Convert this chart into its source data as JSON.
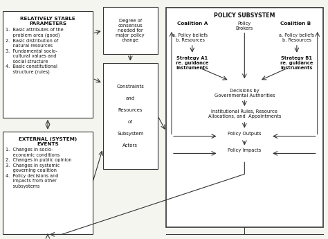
{
  "bg_color": "#f5f5f0",
  "box_color": "#ffffff",
  "border_color": "#333333",
  "text_color": "#111111",
  "figsize": [
    4.74,
    3.45
  ],
  "dpi": 100,
  "stable_params_title": "RELATIVELY STABLE\nPARAMETERS",
  "stable_params_items": [
    "1.  Basic attributes of the",
    "     problem area (good)",
    "2.  Basic distribution of",
    "     natural resources",
    "3.  Fundamental socio-",
    "     cultural values and",
    "     social structure",
    "4.  Basic constitutional",
    "     structure (rules)"
  ],
  "external_events_title": "EXTERNAL (SYSTEM)\nEVENTS",
  "external_events_items": [
    "1.  Changes in socio-",
    "     economic conditions",
    "2.  Changes in public opinion",
    "3.  Changes in systemic",
    "     governing coalition",
    "4.  Policy decisions and",
    "     impacts from other",
    "     subsystems"
  ],
  "constraints_text": "Constraints\n\nand\n\nResources\n\nof\n\nSubsystem\n\nActors",
  "degree_text": "Degree of\nconsensus\nneeded for\nmajor policy\nchange",
  "policy_subsystem_title": "POLICY SUBSYSTEM",
  "coalition_a_title": "Coalition A",
  "coalition_b_title": "Coalition B",
  "policy_brokers_text": "Policy\nBrokers",
  "coalition_a_items": "a. Policy beliefs\nb. Resources",
  "coalition_b_items": "a. Policy beliefs\nb. Resources",
  "strategy_a_text": "Strategy A1\nre. guidance\ninstruments",
  "strategy_b_text": "Strategy B1\nre. guidance\ninstruments",
  "decisions_text": "Decisions by\nGovernmental Authorities",
  "institutional_text": "Institutional Rules, Resource\nAllocations, and  Appointments",
  "policy_outputs_text": "Policy Outputs",
  "policy_impacts_text": "Policy Impacts"
}
